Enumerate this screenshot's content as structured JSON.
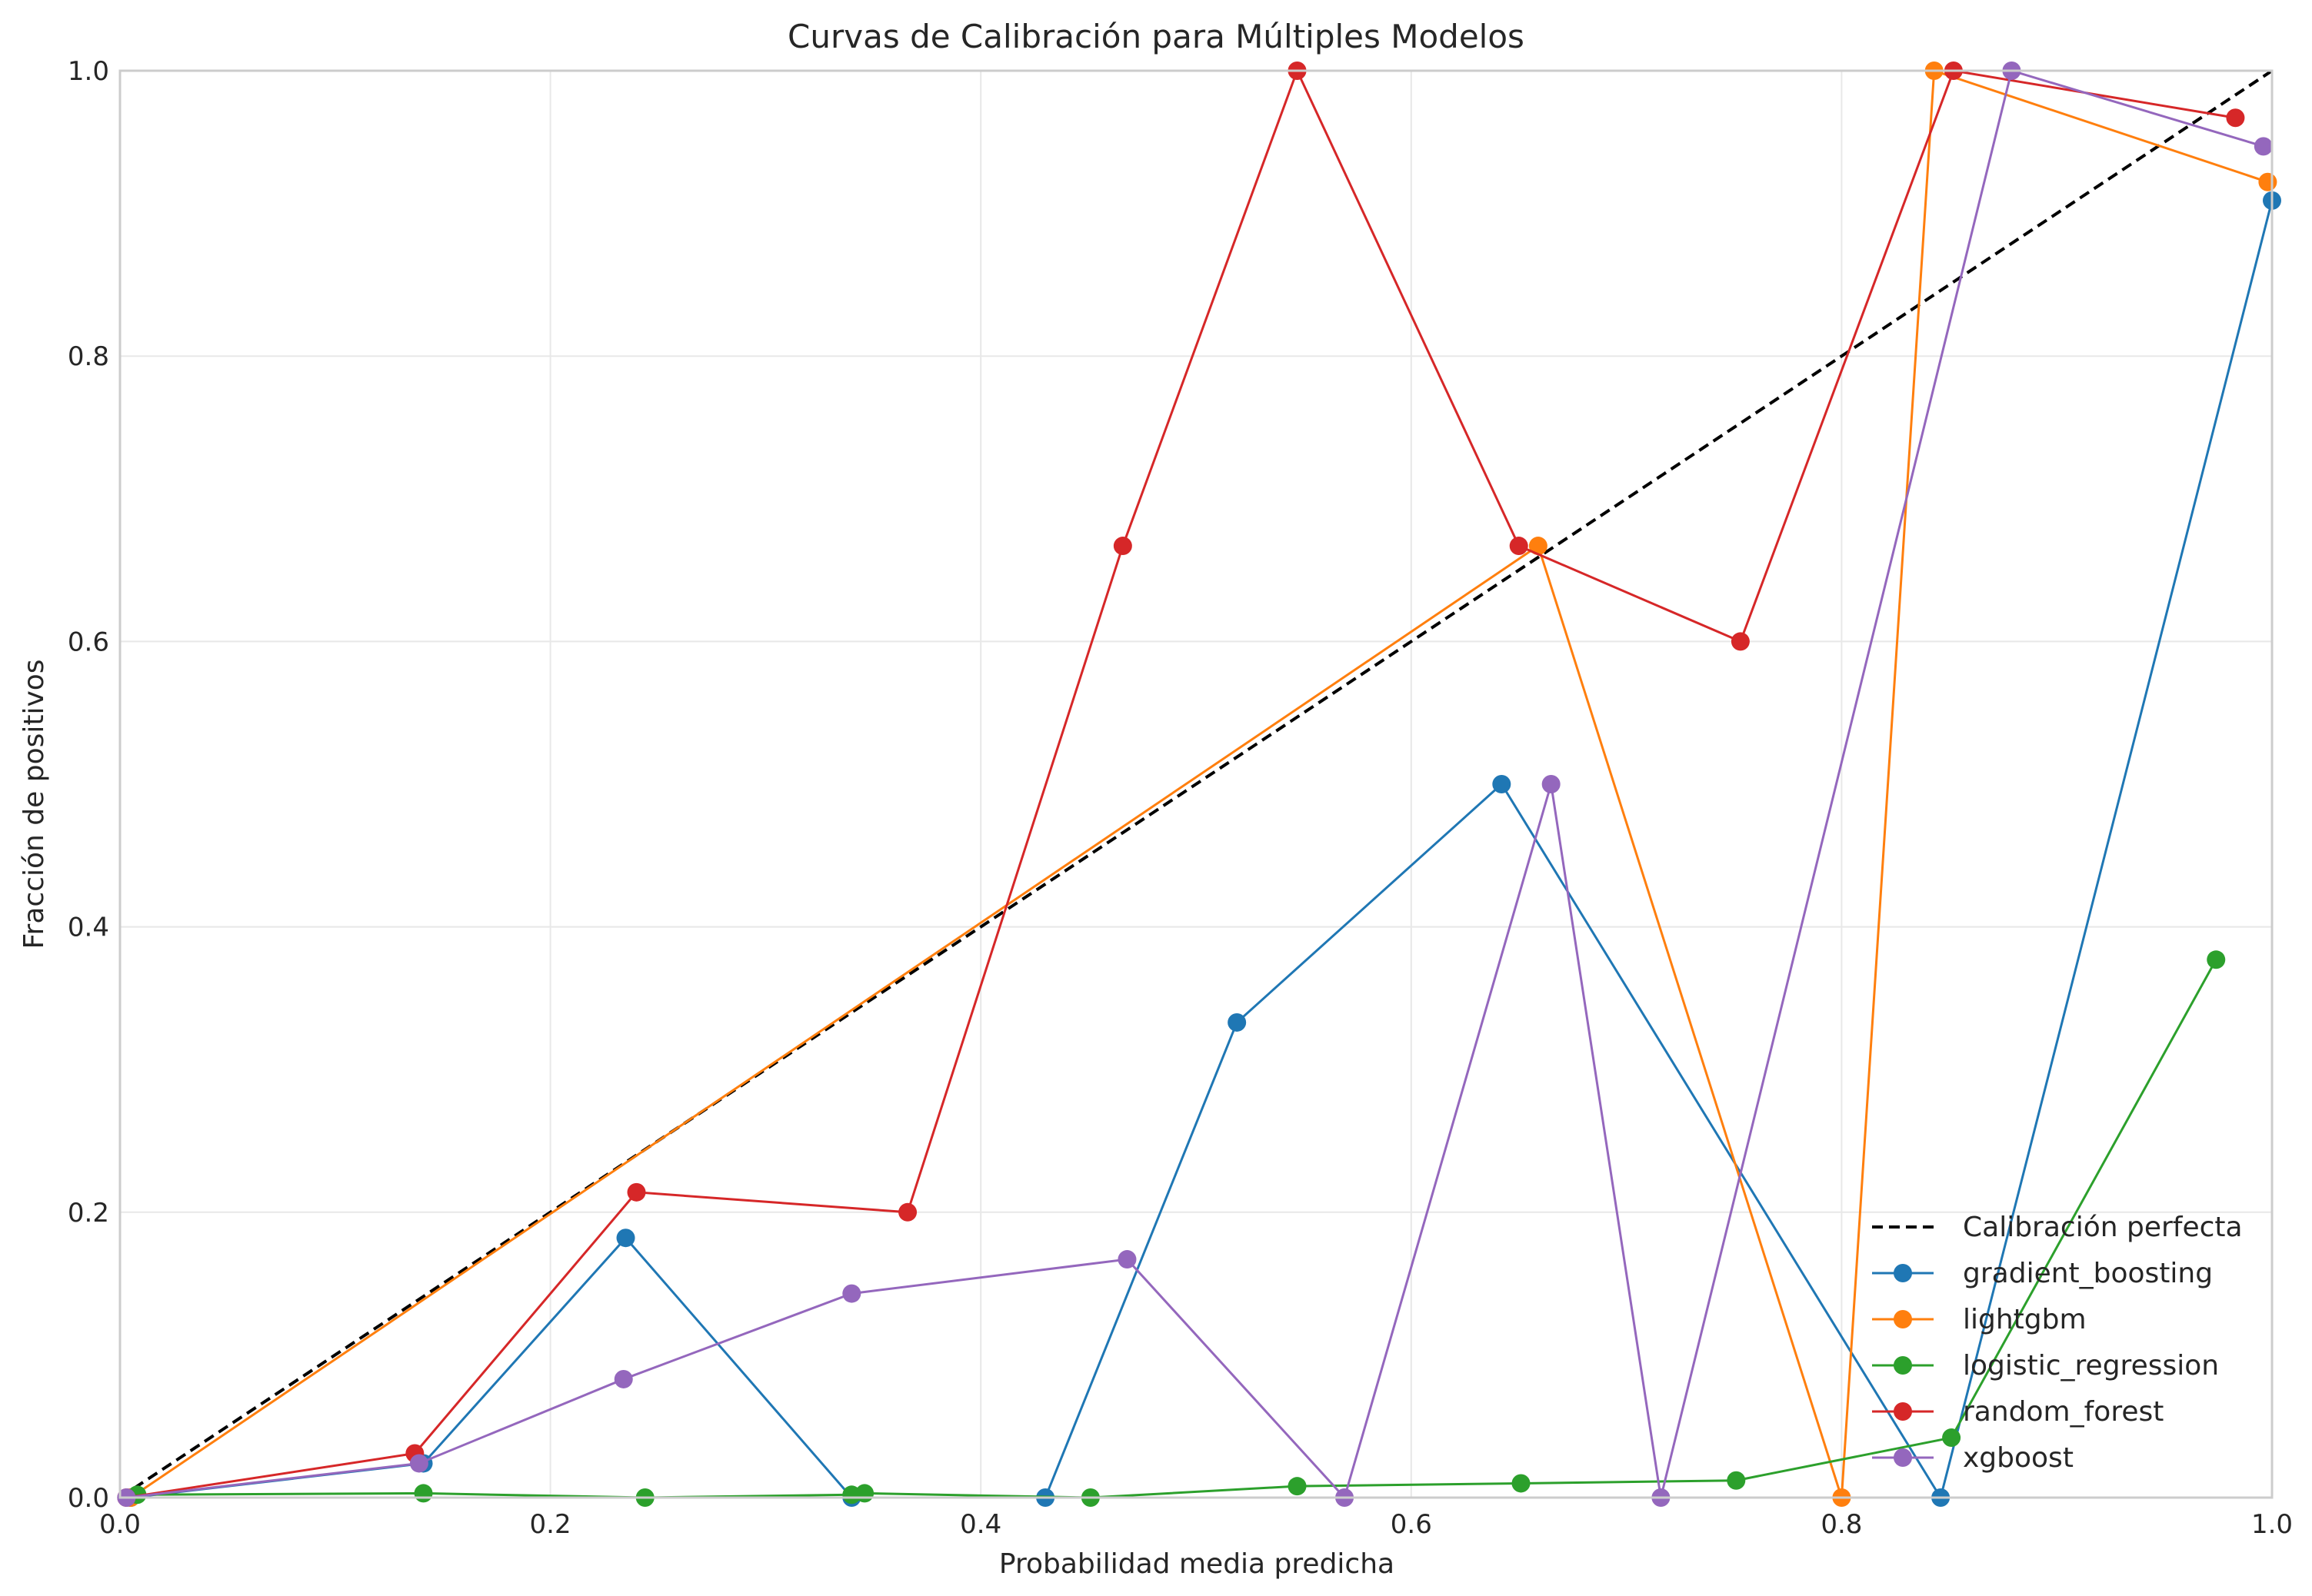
{
  "chart_data": {
    "type": "line",
    "title": "Curvas de Calibración para Múltiples Modelos",
    "xlabel": "Probabilidad media predicha",
    "ylabel": "Fracción de positivos",
    "xlim": [
      0,
      1
    ],
    "ylim": [
      0,
      1
    ],
    "xticks": [
      "0.0",
      "0.2",
      "0.4",
      "0.6",
      "0.8",
      "1.0"
    ],
    "yticks": [
      "0.0",
      "0.2",
      "0.4",
      "0.6",
      "0.8",
      "1.0"
    ],
    "grid": true,
    "legend_position": "bottom-right",
    "reference": {
      "name": "Calibración perfecta",
      "color": "#000000",
      "style": "dashed",
      "x": [
        0,
        1
      ],
      "y": [
        0,
        1
      ]
    },
    "series": [
      {
        "name": "gradient_boosting",
        "color": "#1f77b4",
        "x": [
          0.005,
          0.141,
          0.235,
          0.34,
          0.43,
          0.519,
          0.642,
          0.846,
          1.0
        ],
        "y": [
          0.0,
          0.024,
          0.182,
          0.0,
          0.0,
          0.333,
          0.5,
          0.0,
          0.909
        ]
      },
      {
        "name": "lightgbm",
        "color": "#ff7f0e",
        "x": [
          0.005,
          0.659,
          0.8,
          0.843,
          0.998
        ],
        "y": [
          0.0,
          0.667,
          0.0,
          1.0,
          0.922
        ]
      },
      {
        "name": "logistic_regression",
        "color": "#2ca02c",
        "x": [
          0.008,
          0.141,
          0.244,
          0.34,
          0.346,
          0.451,
          0.547,
          0.651,
          0.751,
          0.851,
          0.974
        ],
        "y": [
          0.002,
          0.003,
          0.0,
          0.002,
          0.003,
          0.0,
          0.008,
          0.01,
          0.012,
          0.042,
          0.377
        ]
      },
      {
        "name": "random_forest",
        "color": "#d62728",
        "x": [
          0.003,
          0.137,
          0.24,
          0.366,
          0.466,
          0.547,
          0.65,
          0.753,
          0.852,
          0.983
        ],
        "y": [
          0.0,
          0.031,
          0.214,
          0.2,
          0.667,
          1.0,
          0.667,
          0.6,
          1.0,
          0.967
        ]
      },
      {
        "name": "xgboost",
        "color": "#9467bd",
        "x": [
          0.003,
          0.139,
          0.234,
          0.34,
          0.468,
          0.569,
          0.665,
          0.716,
          0.879,
          0.996
        ],
        "y": [
          0.0,
          0.024,
          0.083,
          0.143,
          0.167,
          0.0,
          0.5,
          0.0,
          1.0,
          0.947
        ]
      }
    ]
  }
}
